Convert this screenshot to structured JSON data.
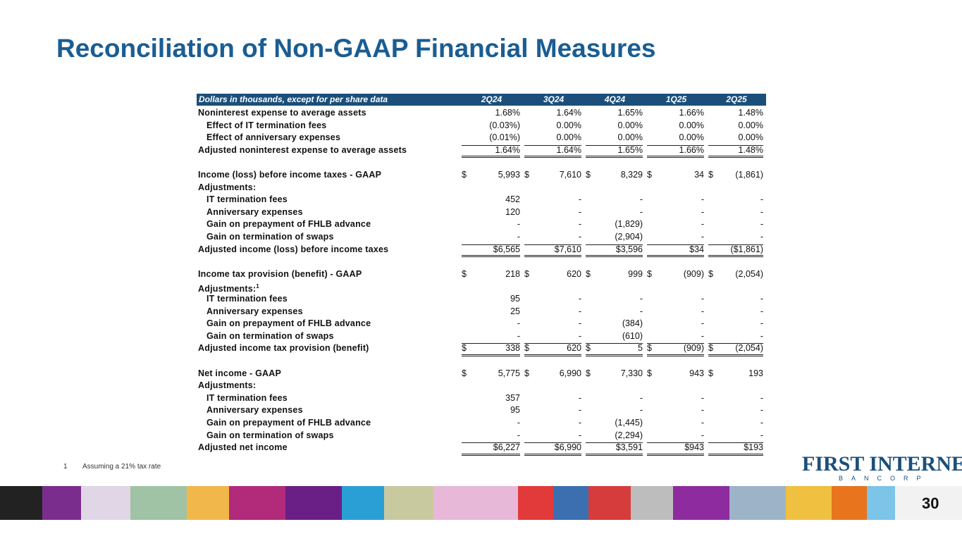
{
  "title": "Reconciliation of Non-GAAP Financial Measures",
  "table": {
    "header": [
      "Dollars in thousands, except for per share data",
      "2Q24",
      "3Q24",
      "4Q24",
      "1Q25",
      "2Q25"
    ],
    "sections": [
      {
        "rows": [
          {
            "label": "Noninterest expense to average assets",
            "cells": [
              "1.68%",
              "1.64%",
              "1.65%",
              "1.66%",
              "1.48%"
            ]
          },
          {
            "label": "Effect of IT termination fees",
            "indent": true,
            "cells": [
              "(0.03%)",
              "0.00%",
              "0.00%",
              "0.00%",
              "0.00%"
            ]
          },
          {
            "label": "Effect of anniversary expenses",
            "indent": true,
            "cells": [
              "(0.01%)",
              "0.00%",
              "0.00%",
              "0.00%",
              "0.00%"
            ]
          },
          {
            "label": "Adjusted noninterest expense to average assets",
            "total": true,
            "cells": [
              "1.64%",
              "1.64%",
              "1.65%",
              "1.66%",
              "1.48%"
            ]
          }
        ]
      },
      {
        "rows": [
          {
            "label": "Income (loss) before income taxes - GAAP",
            "currency": "$",
            "cells": [
              "5,993",
              "7,610",
              "8,329",
              "34",
              "(1,861)"
            ]
          },
          {
            "label": "Adjustments:"
          },
          {
            "label": "IT termination fees",
            "indent": true,
            "cells": [
              "452",
              "-",
              "-",
              "-",
              "-"
            ]
          },
          {
            "label": "Anniversary expenses",
            "indent": true,
            "cells": [
              "120",
              "-",
              "-",
              "-",
              "-"
            ]
          },
          {
            "label": "Gain on prepayment of FHLB advance",
            "indent": true,
            "cells": [
              "-",
              "-",
              "(1,829)",
              "-",
              "-"
            ]
          },
          {
            "label": "Gain on termination of swaps",
            "indent": true,
            "cells": [
              "-",
              "-",
              "(2,904)",
              "-",
              "-"
            ]
          },
          {
            "label": "Adjusted income (loss) before income taxes",
            "total": true,
            "cells": [
              "$6,565",
              "$7,610",
              "$3,596",
              "$34",
              "($1,861)"
            ]
          }
        ]
      },
      {
        "rows": [
          {
            "label": "Income tax provision (benefit) - GAAP",
            "currency": "$",
            "cells": [
              "218",
              "620",
              "999",
              "(909)",
              "(2,054)"
            ]
          },
          {
            "label": "Adjustments:",
            "note": "1"
          },
          {
            "label": "IT termination fees",
            "indent": true,
            "cells": [
              "95",
              "-",
              "-",
              "-",
              "-"
            ]
          },
          {
            "label": "Anniversary expenses",
            "indent": true,
            "cells": [
              "25",
              "-",
              "-",
              "-",
              "-"
            ]
          },
          {
            "label": "Gain on prepayment of FHLB advance",
            "indent": true,
            "cells": [
              "-",
              "-",
              "(384)",
              "-",
              "-"
            ]
          },
          {
            "label": "Gain on termination of swaps",
            "indent": true,
            "cells": [
              "-",
              "-",
              "(610)",
              "-",
              "-"
            ]
          },
          {
            "label": "Adjusted income tax provision (benefit)",
            "total": true,
            "currency": "$",
            "cells": [
              "338",
              "620",
              "5",
              "(909)",
              "(2,054)"
            ]
          }
        ]
      },
      {
        "rows": [
          {
            "label": "Net income  - GAAP",
            "currency": "$",
            "cells": [
              "5,775",
              "6,990",
              "7,330",
              "943",
              "193"
            ]
          },
          {
            "label": "Adjustments:"
          },
          {
            "label": "IT termination fees",
            "indent": true,
            "cells": [
              "357",
              "-",
              "-",
              "-",
              "-"
            ]
          },
          {
            "label": "Anniversary expenses",
            "indent": true,
            "cells": [
              "95",
              "-",
              "-",
              "-",
              "-"
            ]
          },
          {
            "label": "Gain on prepayment of FHLB advance",
            "indent": true,
            "cells": [
              "-",
              "-",
              "(1,445)",
              "-",
              "-"
            ]
          },
          {
            "label": "Gain on termination of swaps",
            "indent": true,
            "cells": [
              "-",
              "-",
              "(2,294)",
              "-",
              "-"
            ]
          },
          {
            "label": "Adjusted net income",
            "total": true,
            "cells": [
              "$6,227",
              "$6,990",
              "$3,591",
              "$943",
              "$193"
            ]
          }
        ]
      }
    ]
  },
  "footnote": {
    "mark": "1",
    "text": "Assuming a 21% tax rate"
  },
  "logo": {
    "name": "FIRST INTERNET",
    "sub": "BANCORP"
  },
  "page_number": "30"
}
